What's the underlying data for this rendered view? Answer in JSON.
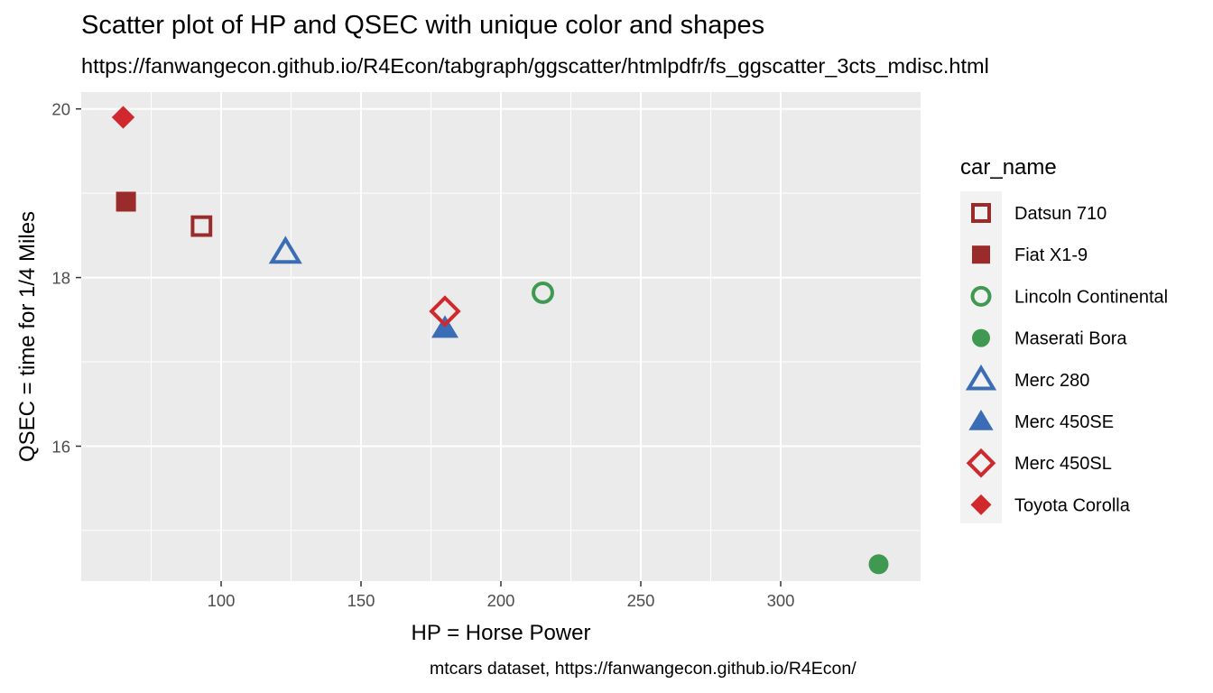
{
  "chart_data": {
    "type": "scatter",
    "title": "Scatter plot of HP and QSEC with unique color and shapes",
    "subtitle": "https://fanwangecon.github.io/R4Econ/tabgraph/ggscatter/htmlpdfr/fs_ggscatter_3cts_mdisc.html",
    "caption": "mtcars dataset, https://fanwangecon.github.io/R4Econ/",
    "xlabel": "HP = Horse Power",
    "ylabel": "QSEC = time for 1/4 Miles",
    "xlim": [
      50,
      350
    ],
    "ylim": [
      14.4,
      20.2
    ],
    "xticks": [
      100,
      150,
      200,
      250,
      300
    ],
    "yticks": [
      16,
      18,
      20
    ],
    "grid": true,
    "legend": {
      "title": "car_name",
      "position": "right"
    },
    "series": [
      {
        "name": "Datsun 710",
        "x": 93,
        "y": 18.61,
        "color": "#9B2A2A",
        "shape": "square-open"
      },
      {
        "name": "Fiat X1-9",
        "x": 66,
        "y": 18.9,
        "color": "#9B2A2A",
        "shape": "square"
      },
      {
        "name": "Lincoln Continental",
        "x": 215,
        "y": 17.82,
        "color": "#3F9950",
        "shape": "circle-open"
      },
      {
        "name": "Maserati Bora",
        "x": 335,
        "y": 14.6,
        "color": "#3F9950",
        "shape": "circle"
      },
      {
        "name": "Merc 280",
        "x": 123,
        "y": 18.3,
        "color": "#3A6DB5",
        "shape": "triangle-open"
      },
      {
        "name": "Merc 450SE",
        "x": 180,
        "y": 17.4,
        "color": "#3A6DB5",
        "shape": "triangle"
      },
      {
        "name": "Merc 450SL",
        "x": 180,
        "y": 17.6,
        "color": "#D0282D",
        "shape": "diamond-open"
      },
      {
        "name": "Toyota Corolla",
        "x": 65,
        "y": 19.9,
        "color": "#D0282D",
        "shape": "diamond"
      }
    ]
  }
}
